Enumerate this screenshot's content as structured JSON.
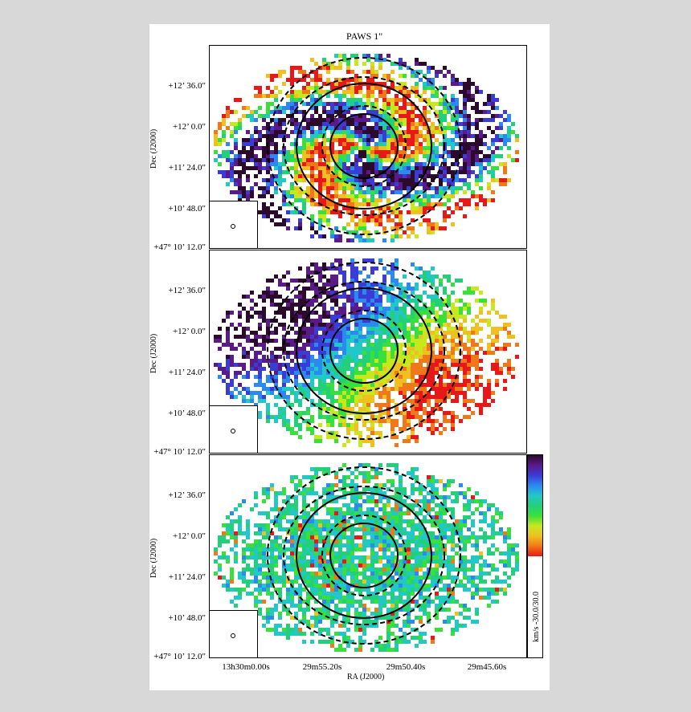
{
  "figure": {
    "title": "PAWS 1\"",
    "ylabel": "Dec (J2000)",
    "xlabel": "RA (J2000)",
    "dec_ticks": [
      "+12’ 36.0\"",
      "+12’ 0.0\"",
      "+11’ 24.0\"",
      "+10’ 48.0\"",
      "+47° 10’ 12.0\""
    ],
    "ra_ticks": [
      "13h30m0.00s",
      "29m55.20s",
      "29m50.40s",
      "29m45.60s"
    ],
    "colorbar": {
      "label": "km/s  -30.0/30.0",
      "colors": [
        "#2b0a2b",
        "#5a1a8a",
        "#3b3bd6",
        "#2a8af0",
        "#22c8c8",
        "#22d07a",
        "#3ae03a",
        "#c8e81e",
        "#f0c020",
        "#f07818",
        "#e81818"
      ]
    }
  },
  "panels": [
    {
      "id": "top"
    },
    {
      "id": "middle"
    },
    {
      "id": "bottom"
    }
  ]
}
